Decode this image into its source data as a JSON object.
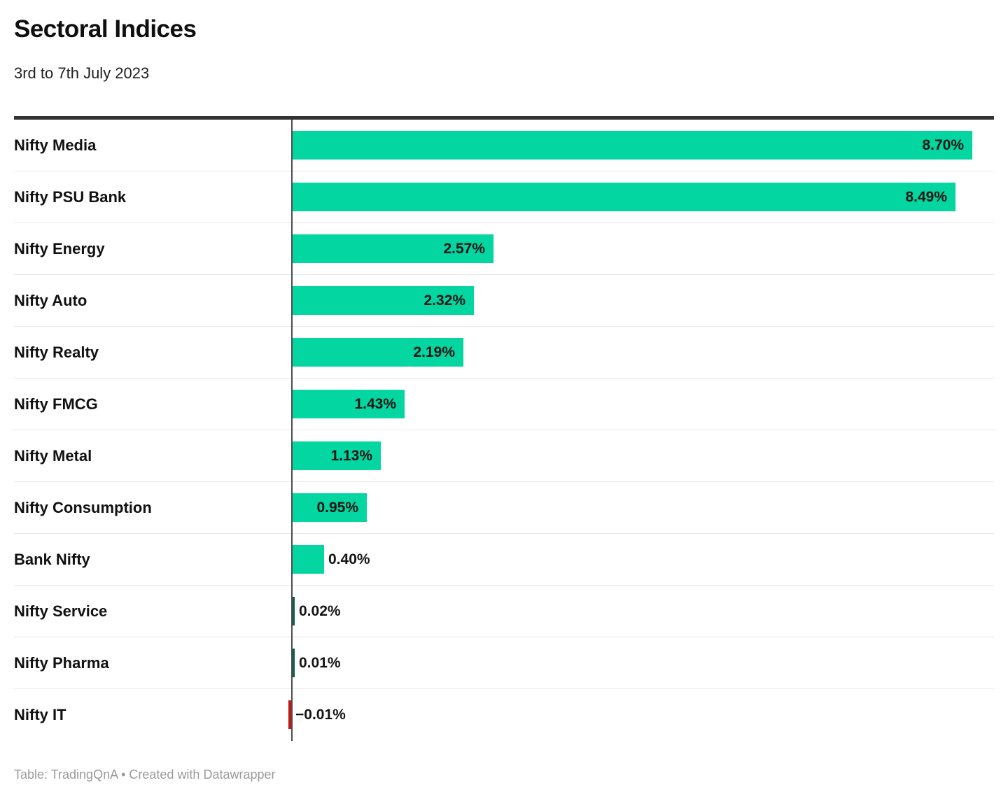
{
  "header": {
    "title": "Sectoral Indices",
    "subtitle": "3rd to 7th July 2023"
  },
  "footer": {
    "text": "Table: TradingQnA • Created with Datawrapper"
  },
  "chart_data": {
    "type": "bar",
    "orientation": "horizontal",
    "title": "Sectoral Indices",
    "subtitle": "3rd to 7th July 2023",
    "unit": "%",
    "xlim": [
      -0.01,
      9.0
    ],
    "grid": "off",
    "legend": "none",
    "categories": [
      "Nifty Media",
      "Nifty PSU Bank",
      "Nifty Energy",
      "Nifty Auto",
      "Nifty Realty",
      "Nifty FMCG",
      "Nifty Metal",
      "Nifty Consumption",
      "Bank Nifty",
      "Nifty Service",
      "Nifty Pharma",
      "Nifty IT"
    ],
    "values": [
      8.7,
      8.49,
      2.57,
      2.32,
      2.19,
      1.43,
      1.13,
      0.95,
      0.4,
      0.02,
      0.01,
      -0.01
    ],
    "display_values": [
      "8.70%",
      "8.49%",
      "2.57%",
      "2.32%",
      "2.19%",
      "1.43%",
      "1.13%",
      "0.95%",
      "0.40%",
      "0.02%",
      "0.01%",
      "−0.01%"
    ],
    "colors": {
      "positive": "#03d6a0",
      "tiny_positive": "#0b5f4b",
      "negative": "#c9150e"
    }
  }
}
